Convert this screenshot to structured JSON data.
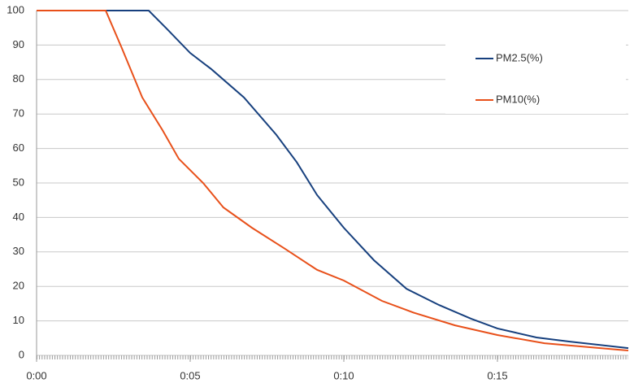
{
  "chart_data": {
    "type": "line",
    "xlim": [
      0,
      19.26
    ],
    "xticks": [
      {
        "value": 0,
        "label": "0:00"
      },
      {
        "value": 5,
        "label": "0:05"
      },
      {
        "value": 10,
        "label": "0:10"
      },
      {
        "value": 15,
        "label": "0:15"
      }
    ],
    "ylim": [
      0,
      100
    ],
    "yticks": [
      0,
      10,
      20,
      30,
      40,
      50,
      60,
      70,
      80,
      90,
      100
    ],
    "grid": true,
    "legend": "top-right",
    "series": [
      {
        "name": "PM2.5(%)",
        "color": "#17407e",
        "x": [
          0,
          3.65,
          4.23,
          5.0,
          5.69,
          6.75,
          7.8,
          8.47,
          9.13,
          10.0,
          10.98,
          12.04,
          13.1,
          14.15,
          15.0,
          16.27,
          17.33,
          19.26
        ],
        "values": [
          100,
          100,
          94.8,
          87.7,
          83,
          74.8,
          64,
          56,
          46.5,
          37,
          27.6,
          19.3,
          14.6,
          10.6,
          7.8,
          5.2,
          4,
          2.1
        ]
      },
      {
        "name": "PM10(%)",
        "color": "#e8501a",
        "x": [
          0,
          2.25,
          2.78,
          3.44,
          4.1,
          4.63,
          5.42,
          6.08,
          7.01,
          8.07,
          9.13,
          10.0,
          11.24,
          12.3,
          13.62,
          15.0,
          16.53,
          19.26
        ],
        "values": [
          100,
          100,
          89,
          74.8,
          65.3,
          57,
          50,
          42.9,
          37,
          31,
          24.8,
          21.7,
          15.8,
          12.3,
          8.7,
          5.9,
          3.5,
          1.4
        ]
      }
    ]
  }
}
